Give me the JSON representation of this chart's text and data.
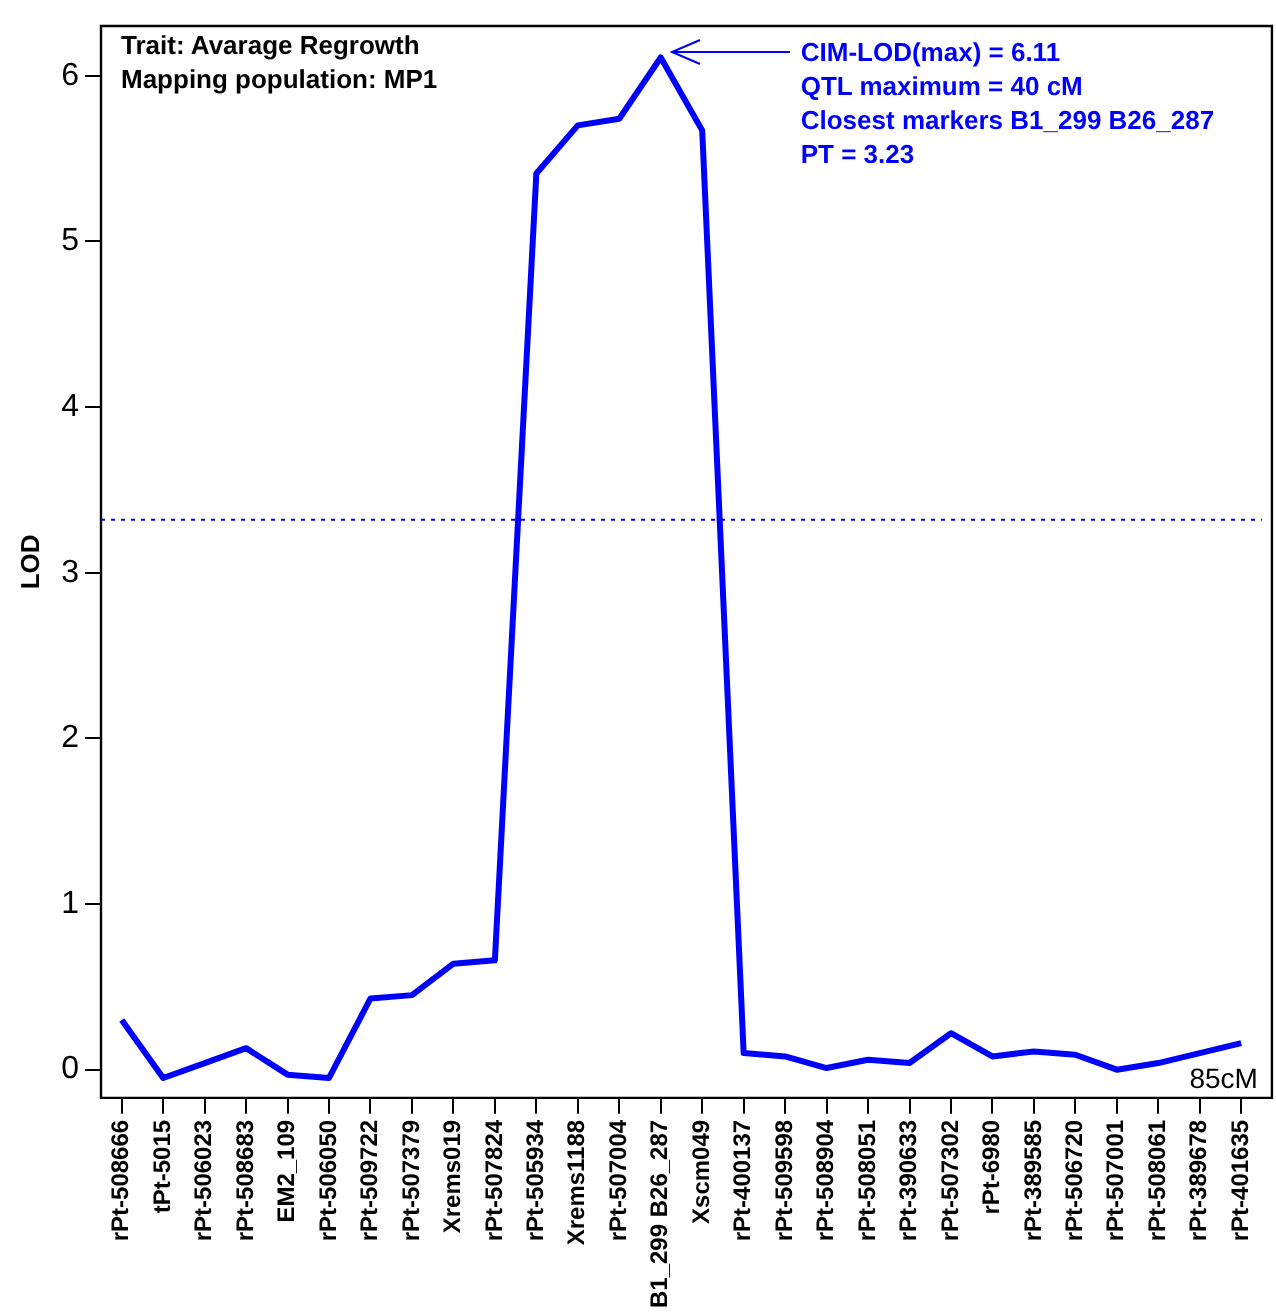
{
  "chart_data": {
    "type": "line",
    "title": "Trait: Avarage Regrowth",
    "subtitle": "Mapping population: MP1",
    "ylabel": "LOD",
    "categories": [
      "rPt-508666",
      "tPt-5015",
      "rPt-506023",
      "rPt-508683",
      "EM2_109",
      "rPt-506050",
      "rPt-509722",
      "rPt-507379",
      "Xrems019",
      "rPt-507824",
      "rPt-505934",
      "Xrems1188",
      "rPt-507004",
      "B1_299 B26_287",
      "Xscm049",
      "rPt-400137",
      "rPt-509598",
      "rPt-508904",
      "rPt-508051",
      "rPt-390633",
      "rPt-507302",
      "rPt-6980",
      "rPt-389585",
      "rPt-506720",
      "rPt-507001",
      "rPt-508061",
      "rPt-389678",
      "rPt-401635"
    ],
    "series": [
      {
        "color": "#0000ff",
        "values": [
          0.3,
          -0.05,
          0.04,
          0.13,
          -0.03,
          -0.05,
          0.43,
          0.45,
          0.64,
          0.66,
          5.41,
          5.7,
          5.74,
          6.11,
          5.67,
          0.1,
          0.08,
          0.01,
          0.06,
          0.04,
          0.22,
          0.08,
          0.11,
          0.09,
          0.0,
          0.04,
          0.1,
          0.16
        ]
      }
    ],
    "ylim": [
      -0.17,
      6.3
    ],
    "yticks": [
      0,
      1,
      2,
      3,
      4,
      5,
      6
    ],
    "ref_lines": [
      {
        "axis": "y",
        "value": 3.32,
        "color": "#0000ff",
        "line_style": "dotted"
      }
    ],
    "annotations": [
      "CIM-LOD(max) = 6.11",
      "QTL maximum = 40 cM",
      "Closest markers B1_299 B26_287",
      "PT = 3.23",
      "85cM"
    ],
    "grid": false,
    "legend": false,
    "marker": "none",
    "line_style": "solid"
  }
}
